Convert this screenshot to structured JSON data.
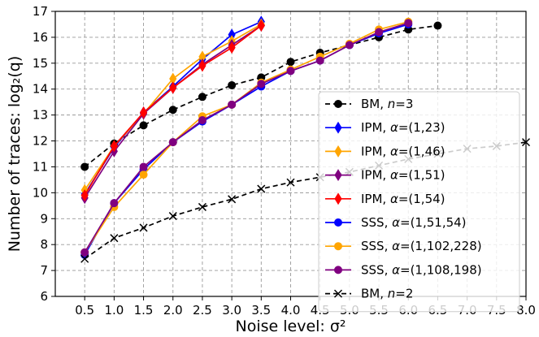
{
  "chart_data": {
    "type": "line",
    "xlabel": "Noise level: σ²",
    "ylabel": "Number of traces: log₂(q)",
    "xlim": [
      0.0,
      8.0
    ],
    "ylim": [
      6,
      17
    ],
    "x_ticks": [
      "0.5",
      "1.0",
      "1.5",
      "2.0",
      "2.5",
      "3.0",
      "3.5",
      "4.0",
      "4.5",
      "5.0",
      "5.5",
      "6.0",
      "6.5",
      "7.0",
      "7.5",
      "8.0"
    ],
    "y_ticks": [
      "6",
      "7",
      "8",
      "9",
      "10",
      "11",
      "12",
      "13",
      "14",
      "15",
      "16",
      "17"
    ],
    "grid": true,
    "legend_position": "right",
    "series": [
      {
        "name": "BM, n=3",
        "label_parts": [
          "BM, ",
          "n",
          "=3"
        ],
        "color": "#000000",
        "dashed": true,
        "marker": "circle",
        "x": [
          0.5,
          1.0,
          1.5,
          2.0,
          2.5,
          3.0,
          3.5,
          4.0,
          4.5,
          5.0,
          5.5,
          6.0,
          6.5
        ],
        "y": [
          11.0,
          11.9,
          12.6,
          13.2,
          13.7,
          14.15,
          14.45,
          15.05,
          15.4,
          15.7,
          16.0,
          16.3,
          16.45
        ]
      },
      {
        "name": "IPM, α=(1,23)",
        "label_parts": [
          "IPM, ",
          "α",
          "=(1,23)"
        ],
        "color": "#0000ff",
        "dashed": false,
        "marker": "diamond",
        "x": [
          0.5,
          1.0,
          1.5,
          2.0,
          2.5,
          3.0,
          3.5
        ],
        "y": [
          9.95,
          11.75,
          13.1,
          14.1,
          15.15,
          16.1,
          16.6
        ]
      },
      {
        "name": "IPM, α=(1,46)",
        "label_parts": [
          "IPM, ",
          "α",
          "=(1,46)"
        ],
        "color": "#ffa500",
        "dashed": false,
        "marker": "diamond",
        "x": [
          0.5,
          1.0,
          1.5,
          2.0,
          2.5,
          3.0,
          3.5
        ],
        "y": [
          10.1,
          11.8,
          13.05,
          14.4,
          15.25,
          15.85,
          16.5
        ]
      },
      {
        "name": "IPM, α=(1,51)",
        "label_parts": [
          "IPM, ",
          "α",
          "=(1,51)"
        ],
        "color": "#800080",
        "dashed": false,
        "marker": "diamond",
        "x": [
          0.5,
          1.0,
          1.5,
          2.0,
          2.5,
          3.0,
          3.5
        ],
        "y": [
          9.8,
          11.6,
          13.05,
          14.05,
          14.95,
          15.7,
          16.45
        ]
      },
      {
        "name": "IPM, α=(1,54)",
        "label_parts": [
          "IPM, ",
          "α",
          "=(1,54)"
        ],
        "color": "#ff0000",
        "dashed": false,
        "marker": "diamond",
        "x": [
          0.5,
          1.0,
          1.5,
          2.0,
          2.5,
          3.0,
          3.5
        ],
        "y": [
          9.9,
          11.8,
          13.1,
          14.05,
          14.9,
          15.6,
          16.45
        ]
      },
      {
        "name": "SSS, α=(1,51,54)",
        "label_parts": [
          "SSS, ",
          "α",
          "=(1,51,54)"
        ],
        "color": "#0000ff",
        "dashed": false,
        "marker": "circle",
        "x": [
          0.5,
          1.0,
          1.5,
          2.0,
          2.5,
          3.0,
          3.5,
          4.0,
          4.5,
          5.0,
          5.5,
          6.0
        ],
        "y": [
          7.6,
          9.6,
          10.9,
          11.95,
          12.75,
          13.4,
          14.1,
          14.7,
          15.1,
          15.7,
          16.15,
          16.5
        ]
      },
      {
        "name": "SSS, α=(1,102,228)",
        "label_parts": [
          "SSS, ",
          "α",
          "=(1,102,228)"
        ],
        "color": "#ffa500",
        "dashed": false,
        "marker": "circle",
        "x": [
          0.5,
          1.0,
          1.5,
          2.0,
          2.5,
          3.0,
          3.5,
          4.0,
          4.5,
          5.0,
          5.5,
          6.0
        ],
        "y": [
          7.7,
          9.45,
          10.7,
          11.95,
          12.95,
          13.4,
          14.25,
          14.75,
          15.25,
          15.75,
          16.3,
          16.6
        ]
      },
      {
        "name": "SSS, α=(1,108,198)",
        "label_parts": [
          "SSS, ",
          "α",
          "=(1,108,198)"
        ],
        "color": "#800080",
        "dashed": false,
        "marker": "circle",
        "x": [
          0.5,
          1.0,
          1.5,
          2.0,
          2.5,
          3.0,
          3.5,
          4.0,
          4.5,
          5.0,
          5.5,
          6.0
        ],
        "y": [
          7.7,
          9.6,
          11.0,
          11.95,
          12.8,
          13.4,
          14.2,
          14.7,
          15.1,
          15.7,
          16.2,
          16.55
        ]
      },
      {
        "name": "BM, n=2",
        "label_parts": [
          "BM, ",
          "n",
          "=2"
        ],
        "color": "#000000",
        "dashed": true,
        "marker": "x",
        "x": [
          0.5,
          1.0,
          1.5,
          2.0,
          2.5,
          3.0,
          3.5,
          4.0,
          4.5,
          5.0,
          5.5,
          6.0,
          6.5,
          7.0,
          7.5,
          8.0
        ],
        "y": [
          7.45,
          8.25,
          8.65,
          9.1,
          9.45,
          9.75,
          10.15,
          10.4,
          10.6,
          10.8,
          11.05,
          11.3,
          11.5,
          11.7,
          11.8,
          11.95
        ]
      }
    ]
  }
}
